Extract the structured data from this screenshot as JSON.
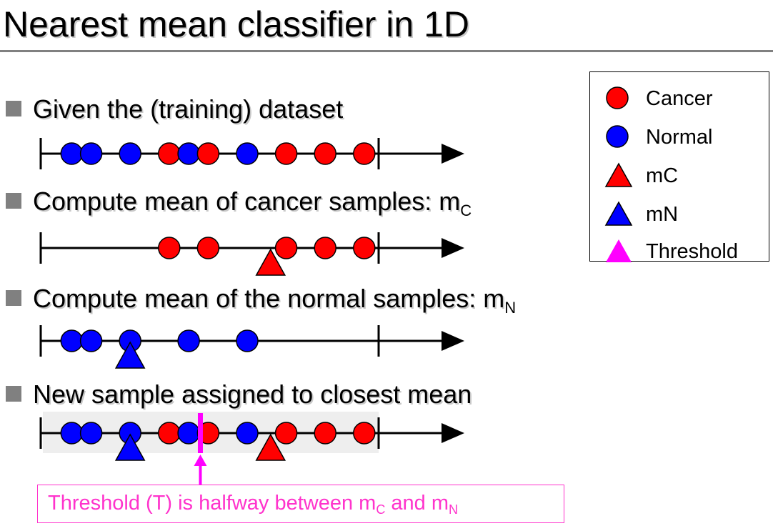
{
  "title": "Nearest mean classifier in 1D",
  "bullets": [
    {
      "text": "Given the (training) dataset",
      "sub": ""
    },
    {
      "text": "Compute mean of cancer samples: m",
      "sub": "C"
    },
    {
      "text": "Compute mean of the normal samples: m",
      "sub": "N"
    },
    {
      "text": "New sample assigned to closest mean",
      "sub": ""
    }
  ],
  "legend": [
    {
      "label": "Cancer",
      "icon": "circle",
      "color": "#ff0000"
    },
    {
      "label": "Normal",
      "icon": "circle",
      "color": "#0000ff"
    },
    {
      "label": "mC",
      "icon": "triangle",
      "color": "#ff0000"
    },
    {
      "label": "mN",
      "icon": "triangle",
      "color": "#0000ff"
    },
    {
      "label": "Threshold",
      "icon": "triangle",
      "color": "#ff00ff"
    }
  ],
  "colors": {
    "cancer": "#ff0000",
    "normal": "#0000ff",
    "threshold": "#ff00ff",
    "bullet": "#808080"
  },
  "axes": [
    {
      "normal": [
        1.0,
        2.0,
        4.0,
        7.0,
        10.0
      ],
      "cancer": [
        6.0,
        8.0,
        12.0,
        14.0,
        16.0
      ],
      "mean_cancer": null,
      "mean_normal": null,
      "threshold": null,
      "highlight": false
    },
    {
      "normal": [],
      "cancer": [
        6.0,
        8.0,
        12.0,
        14.0,
        16.0
      ],
      "mean_cancer": 11.2,
      "mean_normal": null,
      "threshold": null,
      "highlight": false
    },
    {
      "normal": [
        1.0,
        2.0,
        4.0,
        7.0,
        10.0
      ],
      "cancer": [],
      "mean_cancer": null,
      "mean_normal": 4.0,
      "threshold": null,
      "highlight": false
    },
    {
      "normal": [
        1.0,
        2.0,
        4.0,
        7.0,
        10.0
      ],
      "cancer": [
        6.0,
        8.0,
        12.0,
        14.0,
        16.0
      ],
      "mean_cancer": 11.2,
      "mean_normal": 4.0,
      "threshold": 7.6,
      "highlight": true
    }
  ],
  "callout": {
    "prefix": "Threshold (T) is halfway between m",
    "sub1": "C",
    "mid": " and m",
    "sub2": "N"
  }
}
